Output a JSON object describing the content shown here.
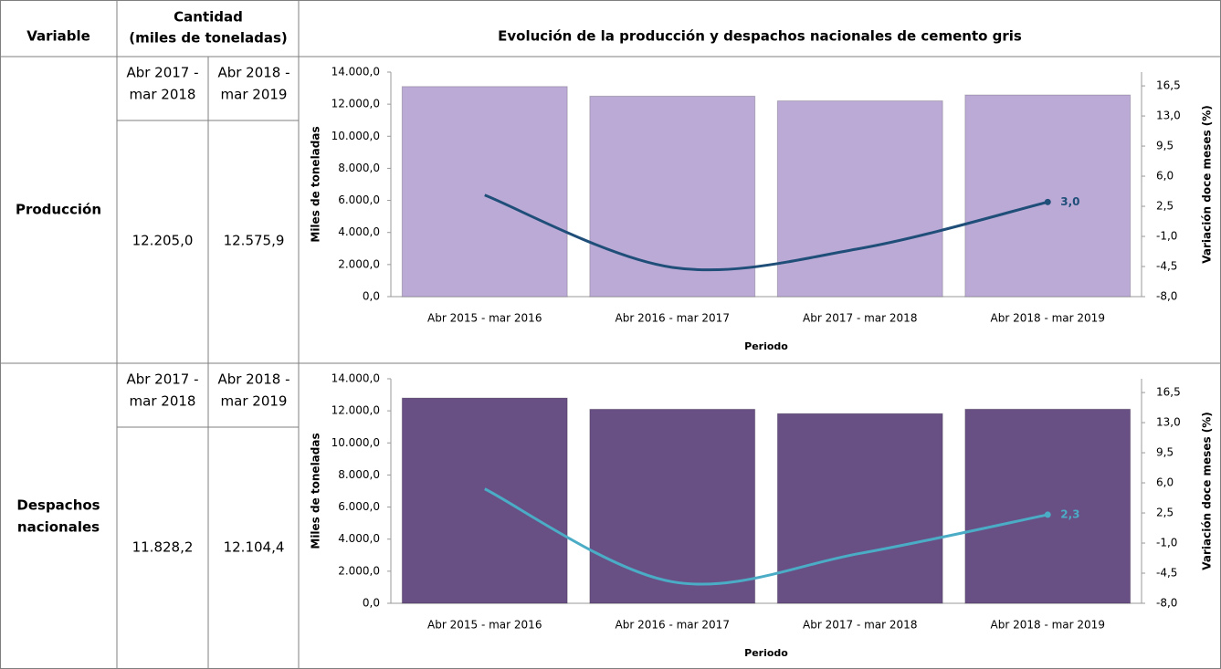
{
  "header": {
    "variable": "Variable",
    "quantity": [
      "Cantidad",
      "(miles de toneladas)"
    ],
    "chart_title": "Evolución de la producción y despachos nacionales de cemento gris"
  },
  "rows": [
    {
      "variable": [
        "Producción"
      ],
      "periods": [
        [
          "Abr 2017 -",
          "mar 2018"
        ],
        [
          "Abr 2018 -",
          "mar 2019"
        ]
      ],
      "values": [
        "12.205,0",
        "12.575,9"
      ]
    },
    {
      "variable": [
        "Despachos",
        "nacionales"
      ],
      "periods": [
        [
          "Abr 2017 -",
          "mar 2018"
        ],
        [
          "Abr 2018 -",
          "mar 2019"
        ]
      ],
      "values": [
        "11.828,2",
        "12.104,4"
      ]
    }
  ],
  "chart_data": [
    {
      "type": "bar",
      "xlabel": "Periodo",
      "ylabel": "Miles de toneladas",
      "y2label": "Variación doce meses (%)",
      "categories": [
        "Abr 2015 - mar 2016",
        "Abr 2016 - mar 2017",
        "Abr 2017 - mar 2018",
        "Abr 2018 - mar 2019"
      ],
      "series": [
        {
          "type": "bar",
          "color": "#bcaad6",
          "values": [
            13100,
            12500,
            12205.0,
            12575.9
          ]
        },
        {
          "type": "line",
          "axis": "y2",
          "color": "#1f4e79",
          "values": [
            3.8,
            -4.6,
            -2.4,
            3.0
          ],
          "value_labels": [
            null,
            null,
            null,
            "3,0"
          ]
        }
      ],
      "ylim": [
        0,
        14000
      ],
      "yticks": [
        {
          "value": 0,
          "label": "0,0"
        },
        {
          "value": 2000,
          "label": "2.000,0"
        },
        {
          "value": 4000,
          "label": "4.000,0"
        },
        {
          "value": 6000,
          "label": "6.000,0"
        },
        {
          "value": 8000,
          "label": "8.000,0"
        },
        {
          "value": 10000,
          "label": "10.000,0"
        },
        {
          "value": 12000,
          "label": "12.000,0"
        },
        {
          "value": 14000,
          "label": "14.000,0"
        }
      ],
      "y2lim": [
        -8,
        18.1
      ],
      "y2ticks": [
        {
          "value": -8,
          "label": "-8,0"
        },
        {
          "value": -4.5,
          "label": "-4,5"
        },
        {
          "value": -1,
          "label": "-1,0"
        },
        {
          "value": 2.5,
          "label": "2,5"
        },
        {
          "value": 6,
          "label": "6,0"
        },
        {
          "value": 9.5,
          "label": "9,5"
        },
        {
          "value": 13,
          "label": "13,0"
        },
        {
          "value": 16.5,
          "label": "16,5"
        }
      ]
    },
    {
      "type": "bar",
      "xlabel": "Periodo",
      "ylabel": "Miles de toneladas",
      "y2label": "Variación doce meses (%)",
      "categories": [
        "Abr 2015 - mar 2016",
        "Abr 2016 - mar 2017",
        "Abr 2017 - mar 2018",
        "Abr 2018 - mar 2019"
      ],
      "series": [
        {
          "type": "bar",
          "color": "#684f84",
          "values": [
            12800,
            12100,
            11828.2,
            12104.4
          ]
        },
        {
          "type": "line",
          "axis": "y2",
          "color": "#4bacc6",
          "values": [
            5.3,
            -5.5,
            -2.2,
            2.3
          ],
          "value_labels": [
            null,
            null,
            null,
            "2,3"
          ]
        }
      ],
      "ylim": [
        0,
        14000
      ],
      "yticks": [
        {
          "value": 0,
          "label": "0,0"
        },
        {
          "value": 2000,
          "label": "2.000,0"
        },
        {
          "value": 4000,
          "label": "4.000,0"
        },
        {
          "value": 6000,
          "label": "6.000,0"
        },
        {
          "value": 8000,
          "label": "8.000,0"
        },
        {
          "value": 10000,
          "label": "10.000,0"
        },
        {
          "value": 12000,
          "label": "12.000,0"
        },
        {
          "value": 14000,
          "label": "14.000,0"
        }
      ],
      "y2lim": [
        -8,
        18.1
      ],
      "y2ticks": [
        {
          "value": -8,
          "label": "-8,0"
        },
        {
          "value": -4.5,
          "label": "-4,5"
        },
        {
          "value": -1,
          "label": "-1,0"
        },
        {
          "value": 2.5,
          "label": "2,5"
        },
        {
          "value": 6,
          "label": "6,0"
        },
        {
          "value": 9.5,
          "label": "9,5"
        },
        {
          "value": 13,
          "label": "13,0"
        },
        {
          "value": 16.5,
          "label": "16,5"
        }
      ]
    }
  ]
}
